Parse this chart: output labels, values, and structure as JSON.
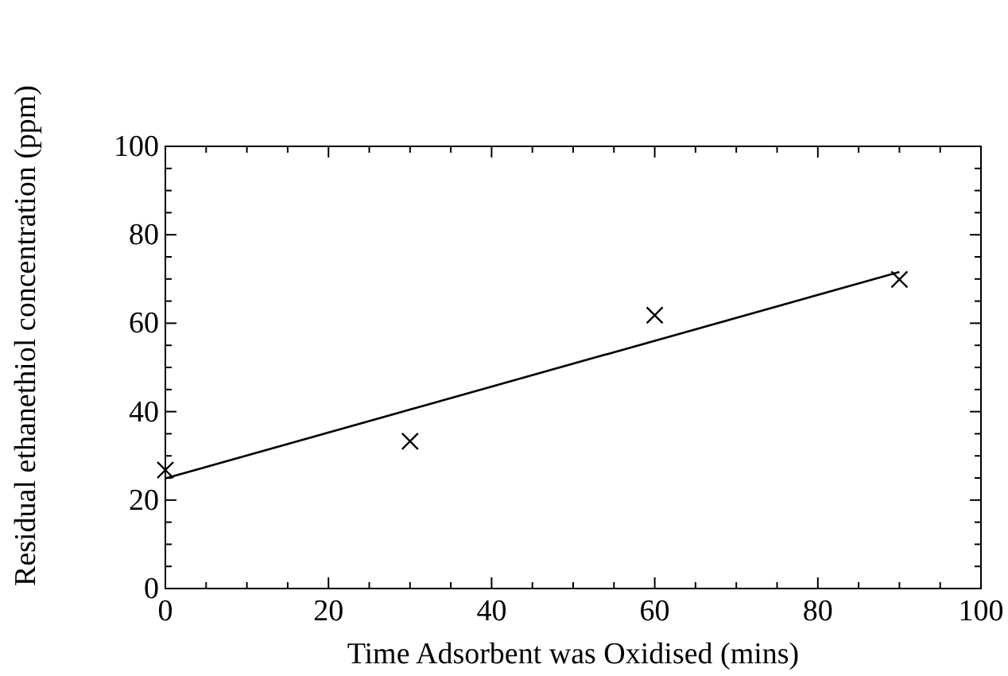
{
  "chart_data": {
    "type": "scatter",
    "xlabel": "Time Adsorbent was Oxidised (mins)",
    "ylabel": "Residual ethanethiol concentration (ppm)",
    "xlim": [
      0,
      100
    ],
    "ylim": [
      0,
      100
    ],
    "xticks": [
      0,
      {
        "value": 5,
        "label": null
      },
      {
        "value": 10,
        "label": null
      },
      {
        "value": 15,
        "label": null
      },
      20,
      {
        "value": 25,
        "label": null
      },
      {
        "value": 30,
        "label": null
      },
      {
        "value": 35,
        "label": null
      },
      40,
      {
        "value": 45,
        "label": null
      },
      {
        "value": 50,
        "label": null
      },
      {
        "value": 55,
        "label": null
      },
      60,
      {
        "value": 65,
        "label": null
      },
      {
        "value": 70,
        "label": null
      },
      {
        "value": 75,
        "label": null
      },
      80,
      {
        "value": 85,
        "label": null
      },
      {
        "value": 90,
        "label": null
      },
      {
        "value": 95,
        "label": null
      },
      100
    ],
    "yticks": [
      0,
      {
        "value": 5,
        "label": null
      },
      {
        "value": 10,
        "label": null
      },
      {
        "value": 15,
        "label": null
      },
      20,
      {
        "value": 25,
        "label": null
      },
      {
        "value": 30,
        "label": null
      },
      {
        "value": 35,
        "label": null
      },
      40,
      {
        "value": 45,
        "label": null
      },
      {
        "value": 50,
        "label": null
      },
      {
        "value": 55,
        "label": null
      },
      60,
      {
        "value": 65,
        "label": null
      },
      {
        "value": 70,
        "label": null
      },
      {
        "value": 75,
        "label": null
      },
      80,
      {
        "value": 85,
        "label": null
      },
      {
        "value": 90,
        "label": null
      },
      {
        "value": 95,
        "label": null
      },
      100
    ],
    "grid": false,
    "series": [
      {
        "marker": "cross",
        "color": "#000000",
        "x": [
          0,
          30,
          60,
          90
        ],
        "values": [
          26.8,
          33.3,
          61.8,
          69.9
        ]
      },
      {
        "type": "line",
        "marker": "none",
        "line_style": "solid",
        "color": "#000000",
        "x": [
          0,
          90
        ],
        "values": [
          24.9,
          71.6
        ]
      }
    ]
  }
}
